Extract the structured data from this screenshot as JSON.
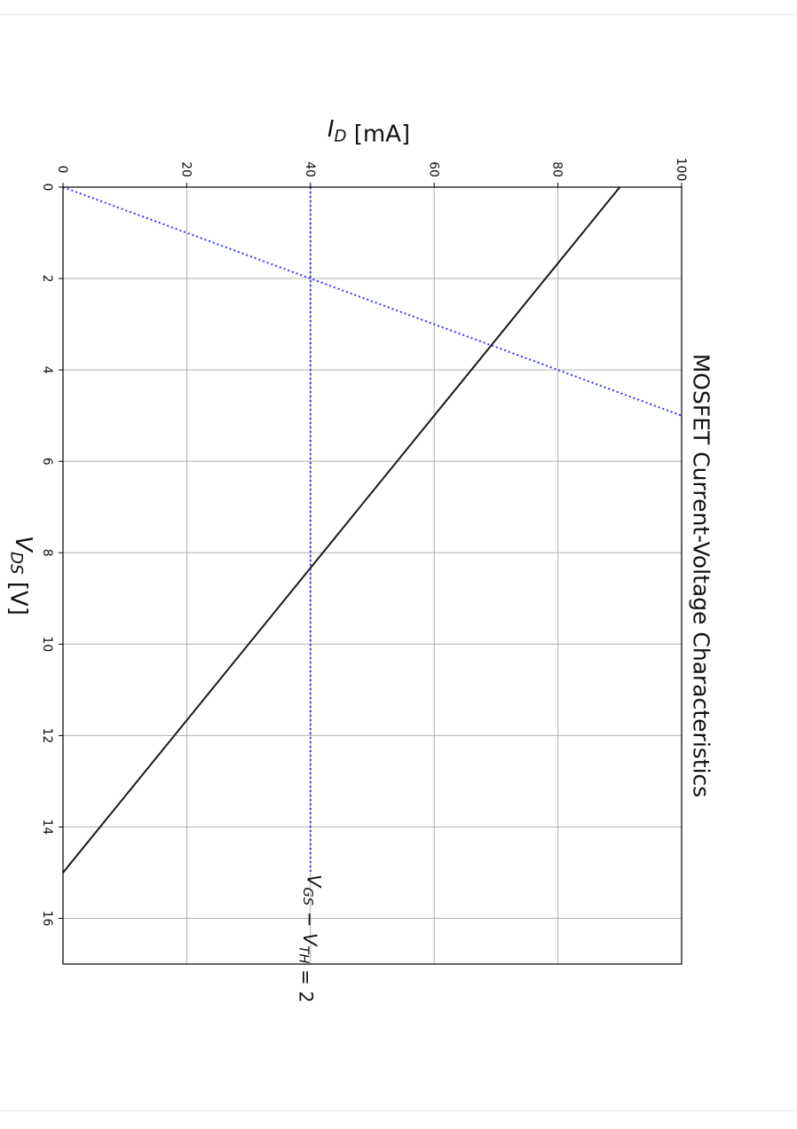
{
  "chart_data": {
    "type": "line",
    "title": "MOSFET Current-Voltage Characteristics",
    "xlabel": "V_DS [V]",
    "ylabel": "I_D [mA]",
    "xlim": [
      0,
      17
    ],
    "ylim": [
      0,
      100
    ],
    "x_ticks": [
      0,
      2,
      4,
      6,
      8,
      10,
      12,
      14,
      16
    ],
    "y_ticks": [
      0,
      20,
      40,
      60,
      80,
      100
    ],
    "grid": true,
    "orientation": "rotated 90° clockwise",
    "series": [
      {
        "style": "solid",
        "color": "#1a1a1a",
        "x": [
          0,
          15
        ],
        "y": [
          90,
          0
        ]
      },
      {
        "style": "dotted",
        "color": "#3333ff",
        "x": [
          0,
          5
        ],
        "y": [
          0,
          100
        ]
      },
      {
        "style": "dotted",
        "color": "#3333ff",
        "x": [
          0,
          15
        ],
        "y": [
          40,
          40
        ]
      }
    ],
    "annotations": [
      {
        "text": "V_GS − V_TH = 2",
        "x": 15,
        "y": 40
      }
    ]
  }
}
